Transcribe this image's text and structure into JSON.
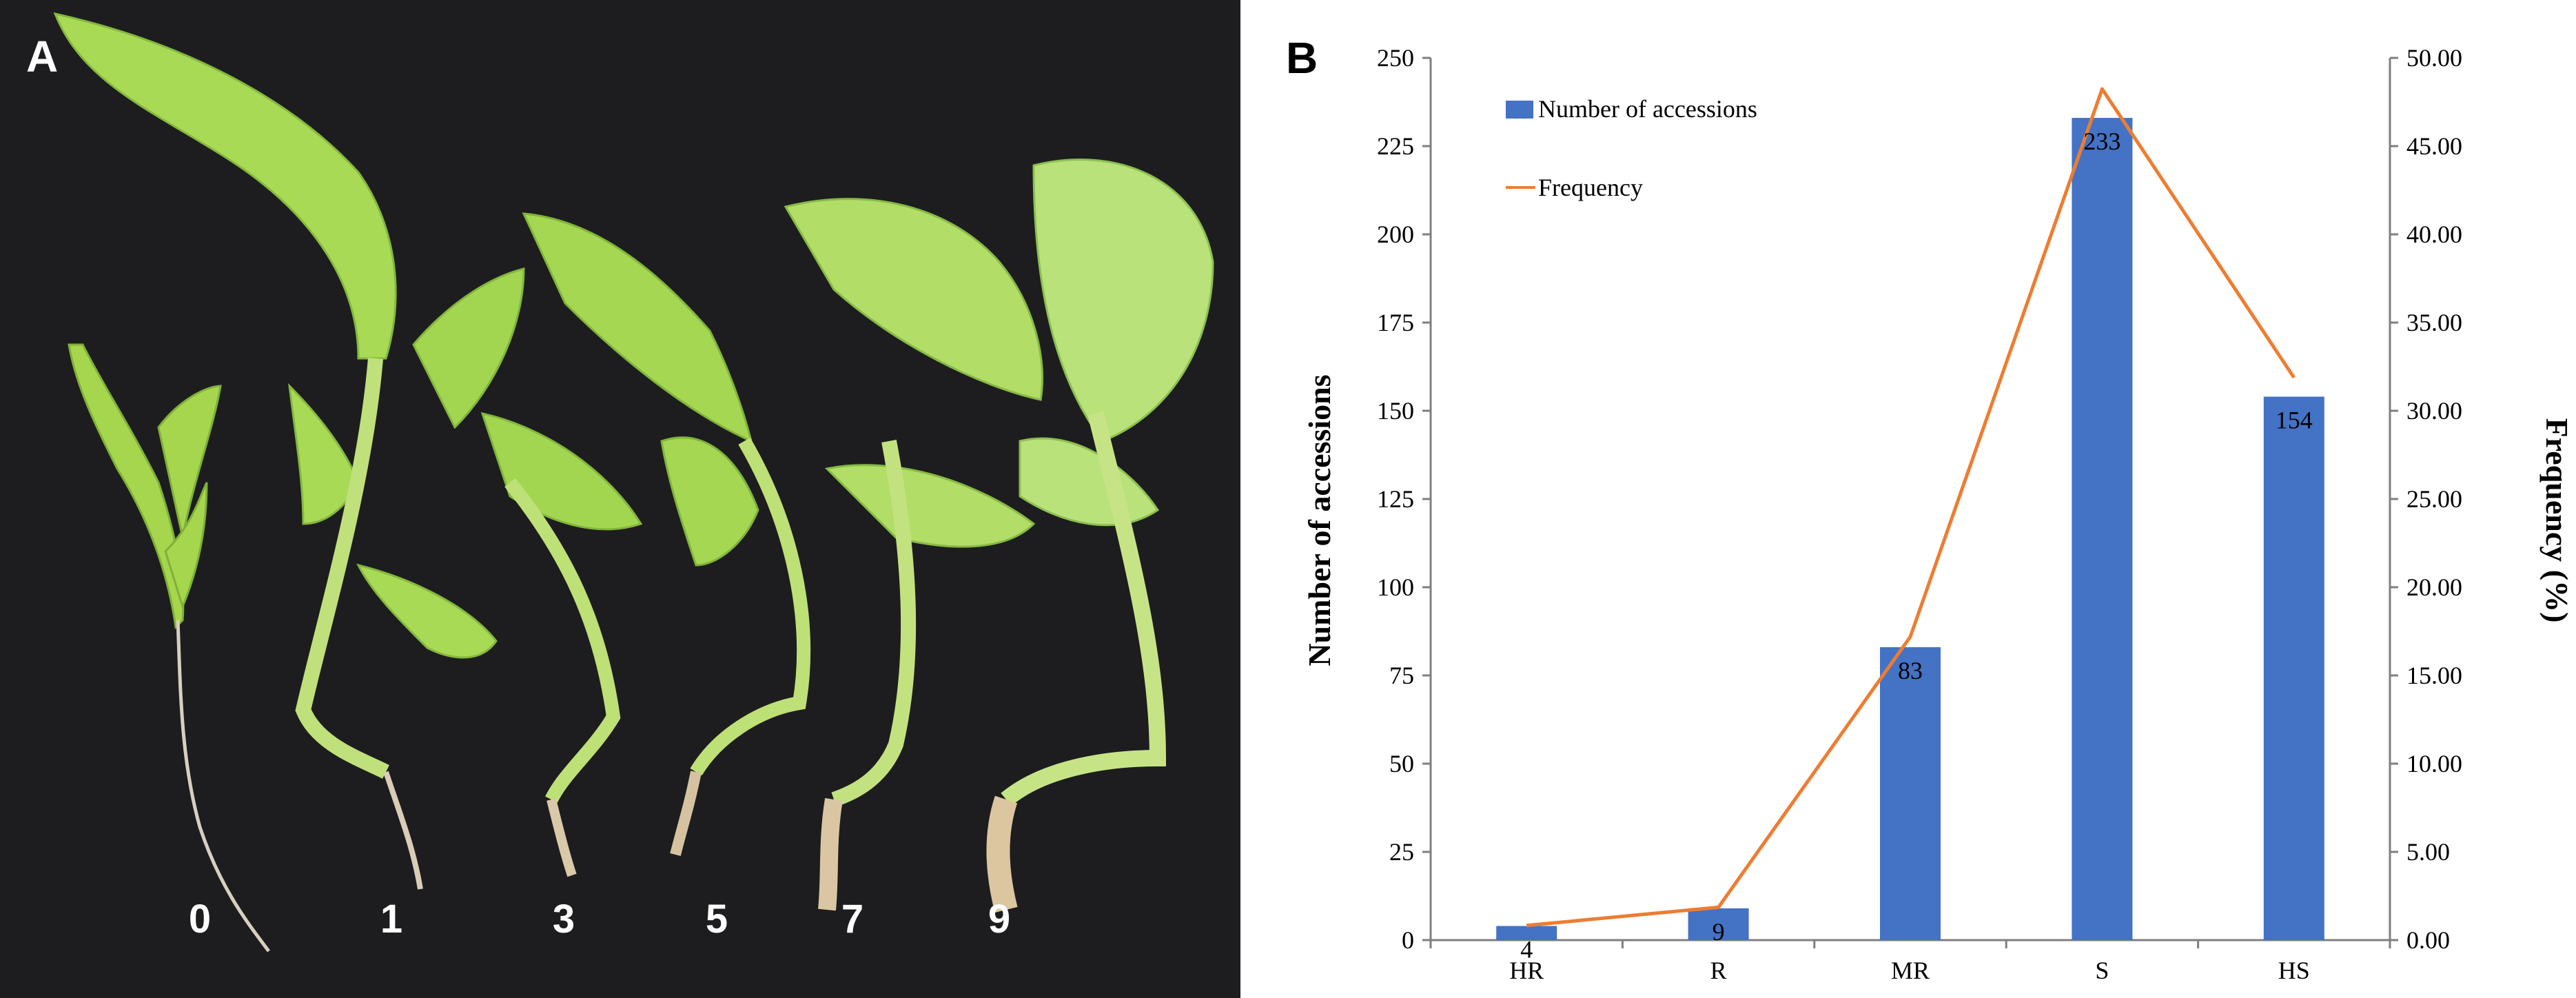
{
  "panel_a": {
    "letter": "A",
    "score_labels": [
      "0",
      "1",
      "3",
      "5",
      "7",
      "9"
    ]
  },
  "panel_b": {
    "letter": "B"
  },
  "colors": {
    "bar": "#4472C4",
    "line": "#ED7D31",
    "background_photo": "#1a1a1c",
    "leaf": "#9cd04a"
  },
  "chart_data": {
    "type": "bar",
    "categories": [
      "HR",
      "R",
      "MR",
      "S",
      "HS"
    ],
    "series": [
      {
        "name": "Number of accessions",
        "type": "bar",
        "axis": "left",
        "values": [
          4,
          9,
          83,
          233,
          154
        ],
        "data_labels": [
          "4",
          "9",
          "83",
          "233",
          "154"
        ]
      },
      {
        "name": "Frequency",
        "type": "line",
        "axis": "right",
        "values": [
          0.83,
          1.86,
          17.19,
          48.24,
          31.88
        ]
      }
    ],
    "ylabel": "Number of accessions",
    "y2label": "Frequency (%)",
    "ylim": [
      0,
      250
    ],
    "y2lim": [
      0,
      50
    ],
    "yticks": [
      "0",
      "25",
      "50",
      "75",
      "100",
      "125",
      "150",
      "175",
      "200",
      "225",
      "250"
    ],
    "y2ticks": [
      "0.00",
      "5.00",
      "10.00",
      "15.00",
      "20.00",
      "25.00",
      "30.00",
      "35.00",
      "40.00",
      "45.00",
      "50.00"
    ],
    "grid": false,
    "legend_position": "top-left"
  }
}
